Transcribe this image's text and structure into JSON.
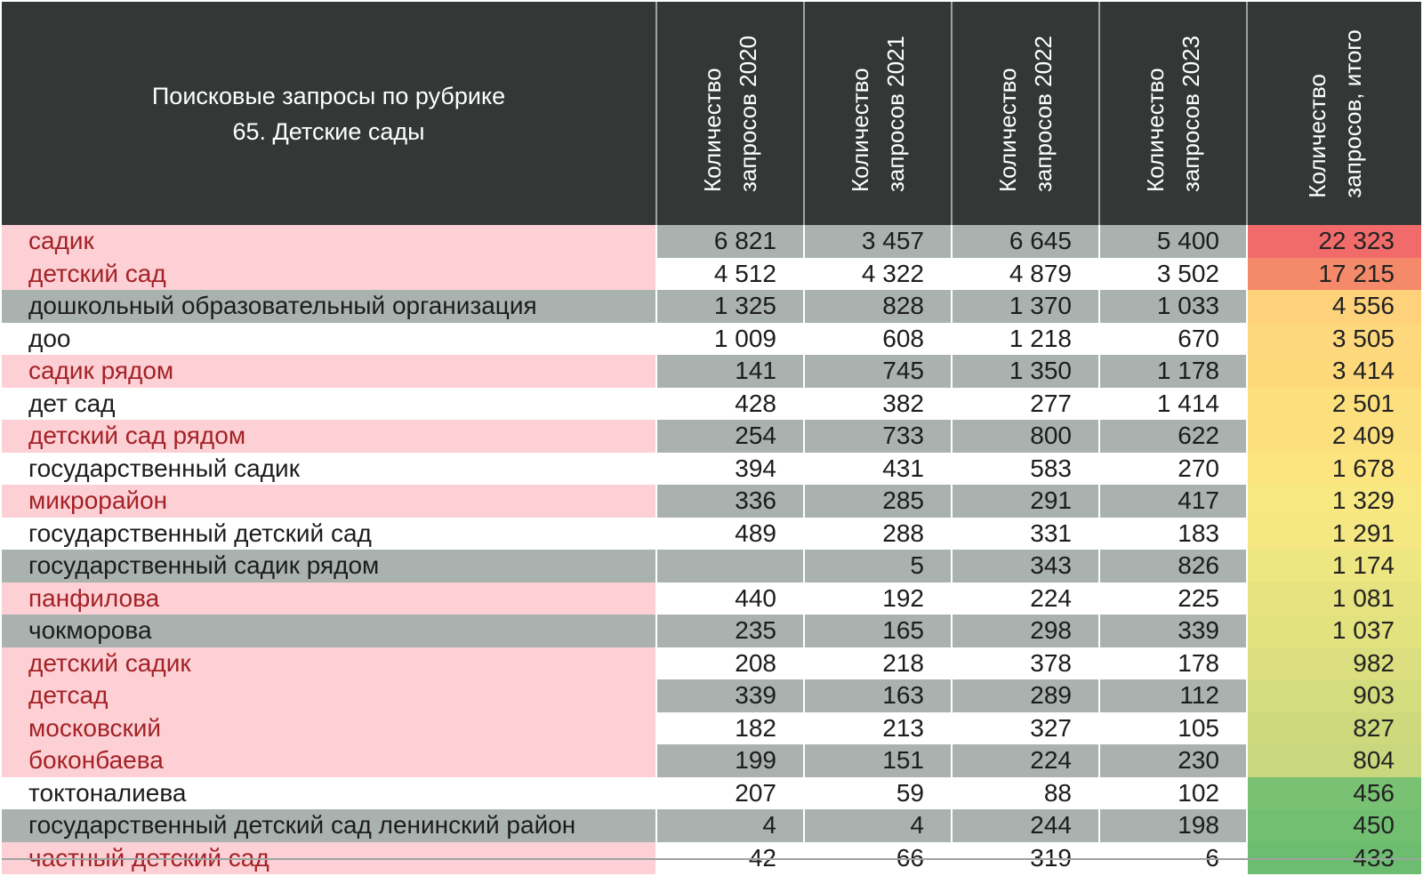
{
  "chart_data": {
    "type": "table",
    "title_lines": [
      "Поисковые запросы по рубрике",
      "65. Детские сады"
    ],
    "columns": [
      {
        "line1": "Количество",
        "line2": "запросов 2020"
      },
      {
        "line1": "Количество",
        "line2": "запросов 2021"
      },
      {
        "line1": "Количество",
        "line2": "запросов 2022"
      },
      {
        "line1": "Количество",
        "line2": "запросов 2023"
      },
      {
        "line1": "Количество",
        "line2": "запросов, итого"
      }
    ],
    "rows": [
      {
        "keyword": "садик",
        "highlight": true,
        "shade": "gray",
        "values": [
          "6 821",
          "3 457",
          "6 645",
          "5 400",
          "22 323"
        ],
        "total_color": "#f26b6b"
      },
      {
        "keyword": "детский сад",
        "highlight": true,
        "shade": "white",
        "values": [
          "4 512",
          "4 322",
          "4 879",
          "3 502",
          "17 215"
        ],
        "total_color": "#f58a6a"
      },
      {
        "keyword": "дошкольный образовательный организация",
        "highlight": false,
        "shade": "gray",
        "values": [
          "1 325",
          "828",
          "1 370",
          "1 033",
          "4 556"
        ],
        "total_color": "#fdd27a"
      },
      {
        "keyword": "доо",
        "highlight": false,
        "shade": "white",
        "values": [
          "1 009",
          "608",
          "1 218",
          "670",
          "3 505"
        ],
        "total_color": "#fdd87c"
      },
      {
        "keyword": "садик рядом",
        "highlight": true,
        "shade": "gray",
        "values": [
          "141",
          "745",
          "1 350",
          "1 178",
          "3 414"
        ],
        "total_color": "#fdd97c"
      },
      {
        "keyword": "дет сад",
        "highlight": false,
        "shade": "white",
        "values": [
          "428",
          "382",
          "277",
          "1 414",
          "2 501"
        ],
        "total_color": "#fde07e"
      },
      {
        "keyword": "детский сад рядом",
        "highlight": true,
        "shade": "gray",
        "values": [
          "254",
          "733",
          "800",
          "622",
          "2 409"
        ],
        "total_color": "#fde07e"
      },
      {
        "keyword": "государственный садик",
        "highlight": false,
        "shade": "white",
        "values": [
          "394",
          "431",
          "583",
          "270",
          "1 678"
        ],
        "total_color": "#fce57f"
      },
      {
        "keyword": "микрорайон",
        "highlight": true,
        "shade": "gray",
        "values": [
          "336",
          "285",
          "291",
          "417",
          "1 329"
        ],
        "total_color": "#f8e881"
      },
      {
        "keyword": "государственный детский сад",
        "highlight": false,
        "shade": "white",
        "values": [
          "489",
          "288",
          "331",
          "183",
          "1 291"
        ],
        "total_color": "#f5e781"
      },
      {
        "keyword": "государственный садик рядом",
        "highlight": false,
        "shade": "gray",
        "values": [
          "",
          "5",
          "343",
          "826",
          "1 174"
        ],
        "total_color": "#eee681"
      },
      {
        "keyword": "панфилова",
        "highlight": true,
        "shade": "white",
        "values": [
          "440",
          "192",
          "224",
          "225",
          "1 081"
        ],
        "total_color": "#e6e380"
      },
      {
        "keyword": "чокморова",
        "highlight": false,
        "shade": "gray",
        "values": [
          "235",
          "165",
          "298",
          "339",
          "1 037"
        ],
        "total_color": "#e2e27f"
      },
      {
        "keyword": "детский садик",
        "highlight": true,
        "shade": "white",
        "values": [
          "208",
          "218",
          "378",
          "178",
          "982"
        ],
        "total_color": "#dcdf7f"
      },
      {
        "keyword": "детсад",
        "highlight": true,
        "shade": "gray",
        "values": [
          "339",
          "163",
          "289",
          "112",
          "903"
        ],
        "total_color": "#d4dc7e"
      },
      {
        "keyword": "московский",
        "highlight": true,
        "shade": "white",
        "values": [
          "182",
          "213",
          "327",
          "105",
          "827"
        ],
        "total_color": "#ccd97d"
      },
      {
        "keyword": "боконбаева",
        "highlight": true,
        "shade": "gray",
        "values": [
          "199",
          "151",
          "224",
          "230",
          "804"
        ],
        "total_color": "#c9d87d"
      },
      {
        "keyword": "токтоналиева",
        "highlight": false,
        "shade": "white",
        "values": [
          "207",
          "59",
          "88",
          "102",
          "456"
        ],
        "total_color": "#79c273"
      },
      {
        "keyword": "государственный детский сад ленинский район",
        "highlight": false,
        "shade": "gray",
        "values": [
          "4",
          "4",
          "244",
          "198",
          "450"
        ],
        "total_color": "#72bf72"
      },
      {
        "keyword": "частный детский сад",
        "highlight": true,
        "shade": "white",
        "values": [
          "42",
          "66",
          "319",
          "6",
          "433"
        ],
        "total_color": "#6dbd71"
      }
    ]
  }
}
